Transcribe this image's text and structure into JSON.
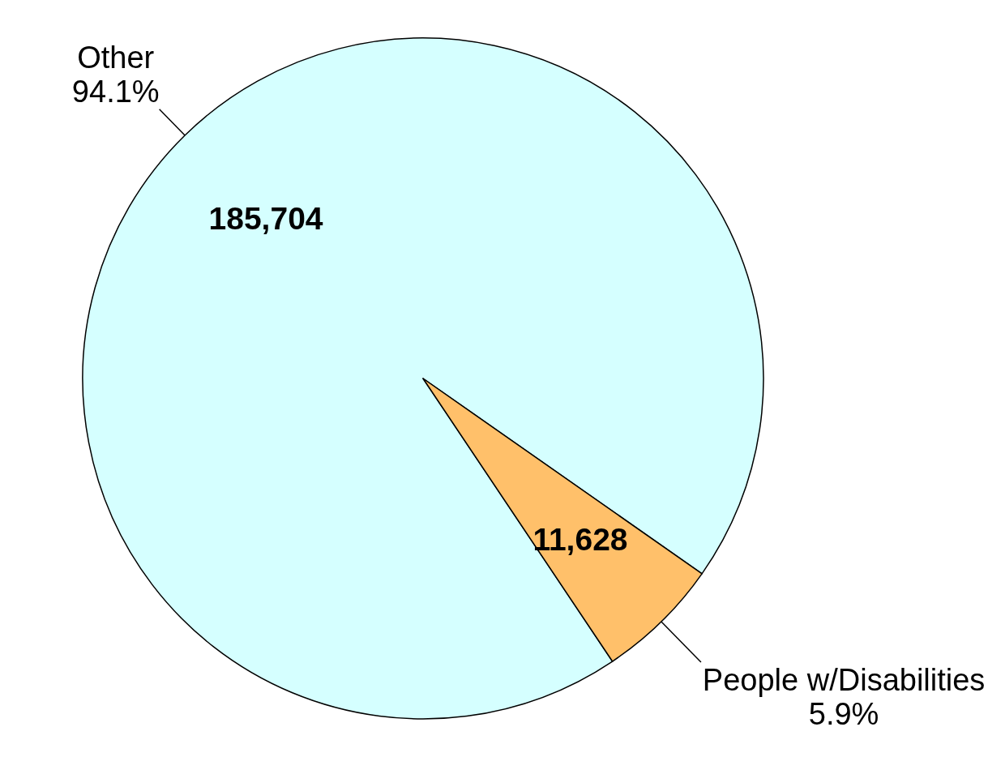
{
  "chart_data": {
    "type": "pie",
    "categories": [
      "Other",
      "People w/Disabilities"
    ],
    "values": [
      185704,
      11628
    ],
    "colors": [
      "#d5ffff",
      "#ffc06a"
    ],
    "value_labels": [
      "185,704",
      "11,628"
    ],
    "annotations": [
      {
        "text": "94.1%",
        "x": "Other"
      },
      {
        "text": "5.9%",
        "x": "People w/Disabilities"
      }
    ]
  }
}
